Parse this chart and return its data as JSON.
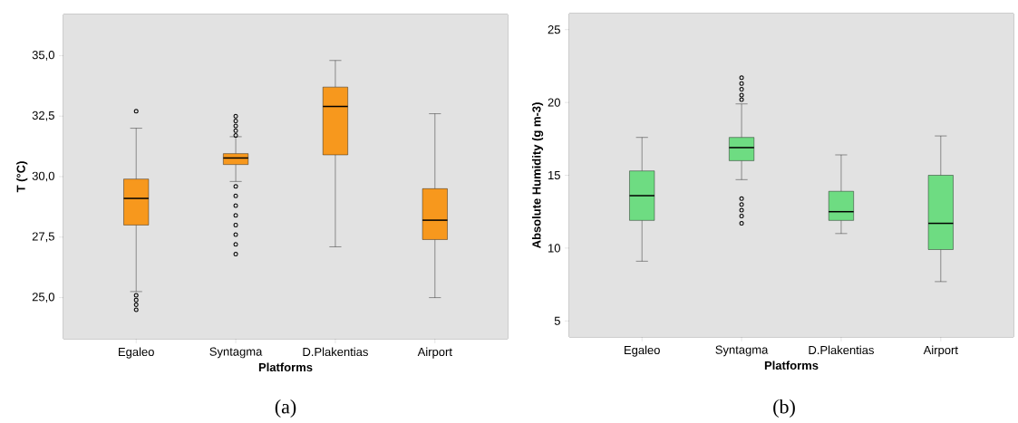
{
  "chart_data": [
    {
      "type": "box",
      "xlabel": "Platforms",
      "ylabel": "T (°C)",
      "categories": [
        "Egaleo",
        "Syntagma",
        "D.Plakentias",
        "Airport"
      ],
      "ylim": [
        23.3,
        36.7
      ],
      "yticks": [
        {
          "value": 25,
          "label": "25,0"
        },
        {
          "value": 27.5,
          "label": "27,5"
        },
        {
          "value": 30,
          "label": "30,0"
        },
        {
          "value": 32.5,
          "label": "32,5"
        },
        {
          "value": 35,
          "label": "35,0"
        }
      ],
      "marker": "circle",
      "annotations": [
        "(a)"
      ],
      "series": [
        {
          "color": "#f7981d",
          "boxes": [
            {
              "low": 25.25,
              "q1": 28.0,
              "median": 29.1,
              "q3": 29.9,
              "high": 32.0,
              "outliers": [
                32.7,
                25.1,
                24.9,
                24.7,
                24.5
              ]
            },
            {
              "low": 29.8,
              "q1": 30.5,
              "median": 30.77,
              "q3": 30.95,
              "high": 31.65,
              "outliers": [
                32.5,
                32.3,
                32.1,
                31.9,
                31.7,
                29.6,
                29.2,
                28.8,
                28.4,
                28.0,
                27.6,
                27.2,
                26.8
              ]
            },
            {
              "low": 27.1,
              "q1": 30.9,
              "median": 32.9,
              "q3": 33.7,
              "high": 34.8
            },
            {
              "low": 25.0,
              "q1": 27.4,
              "median": 28.2,
              "q3": 29.5,
              "high": 32.6
            }
          ]
        }
      ]
    },
    {
      "type": "box",
      "xlabel": "Platforms",
      "ylabel": "Absolute Humidity (g m-3)",
      "categories": [
        "Egaleo",
        "Syntagma",
        "D.Plakentias",
        "Airport"
      ],
      "ylim": [
        3.9,
        26.1
      ],
      "yticks": [
        5,
        10,
        15,
        20,
        25
      ],
      "marker": "circle",
      "annotations": [
        "(b)"
      ],
      "series": [
        {
          "color": "#6edc82",
          "boxes": [
            {
              "low": 9.1,
              "q1": 11.9,
              "median": 13.6,
              "q3": 15.3,
              "high": 17.6
            },
            {
              "low": 14.7,
              "q1": 16.0,
              "median": 16.9,
              "q3": 17.6,
              "high": 19.9,
              "outliers": [
                21.7,
                21.3,
                20.9,
                20.5,
                20.2,
                13.4,
                13.0,
                12.6,
                12.2,
                11.7
              ]
            },
            {
              "low": 11.0,
              "q1": 11.9,
              "median": 12.5,
              "q3": 13.9,
              "high": 16.4
            },
            {
              "low": 7.7,
              "q1": 9.9,
              "median": 11.7,
              "q3": 15.0,
              "high": 17.7
            }
          ]
        }
      ]
    }
  ]
}
